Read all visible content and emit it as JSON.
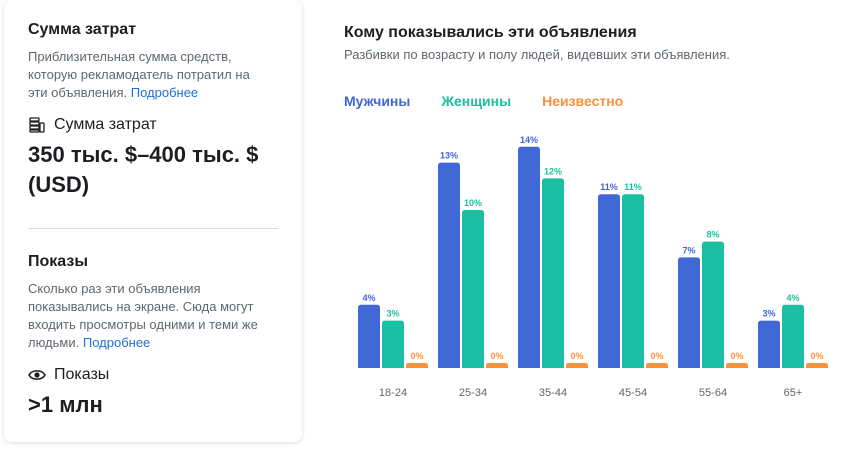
{
  "spend": {
    "title": "Сумма затрат",
    "description": "Приблизительная сумма средств, которую рекламодатель потратил на эти объявления.",
    "link": "Подробнее",
    "metric_label": "Сумма затрат",
    "metric_icon": "money-stack-icon",
    "value": "350 тыс. $–400 тыс. $ (USD)"
  },
  "impressions": {
    "title": "Показы",
    "description": "Сколько раз эти объявления показывались на экране. Сюда могут входить просмотры одними и теми же людьми.",
    "link": "Подробнее",
    "metric_label": "Показы",
    "metric_icon": "eye-icon",
    "value": ">1 млн"
  },
  "chart_data": {
    "type": "bar",
    "title": "Кому показывались эти объявления",
    "subtitle": "Разбивки по возрасту и полу людей, видевших эти объявления.",
    "categories": [
      "18-24",
      "25-34",
      "35-44",
      "45-54",
      "55-64",
      "65+"
    ],
    "series": [
      {
        "name": "Мужчины",
        "color": "#4267d6",
        "values": [
          4,
          13,
          14,
          11,
          7,
          3
        ],
        "labels": [
          "4%",
          "13%",
          "14%",
          "11%",
          "7%",
          "3%"
        ]
      },
      {
        "name": "Женщины",
        "color": "#1bbfa1",
        "values": [
          3,
          10,
          12,
          11,
          8,
          4
        ],
        "labels": [
          "3%",
          "10%",
          "12%",
          "11%",
          "8%",
          "4%"
        ]
      },
      {
        "name": "Неизвестно",
        "color": "#f7923a",
        "values": [
          0,
          0,
          0,
          0,
          0,
          0
        ],
        "labels": [
          "0%",
          "0%",
          "0%",
          "0%",
          "0%",
          "0%"
        ]
      }
    ],
    "legend": "top-left",
    "grid": false
  }
}
